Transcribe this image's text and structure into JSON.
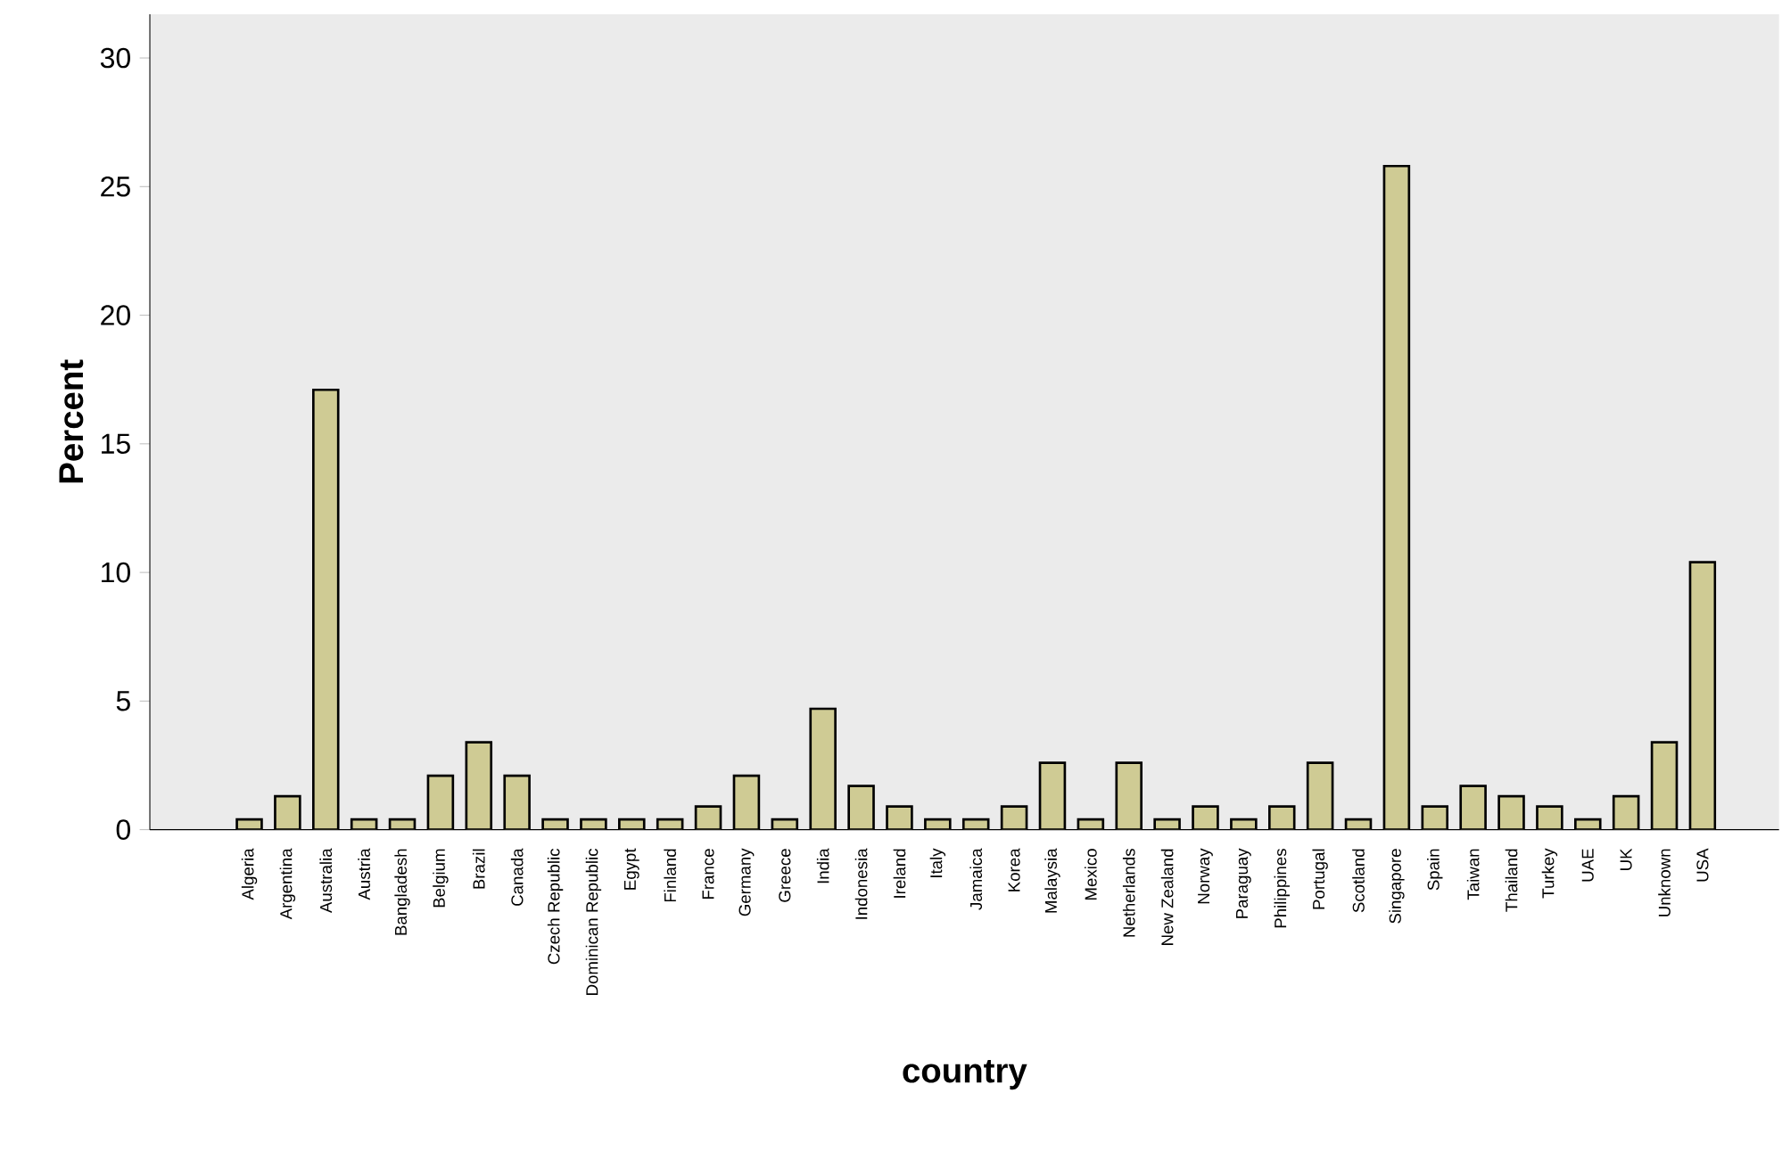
{
  "chart_data": {
    "type": "bar",
    "xlabel": "country",
    "ylabel": "Percent",
    "categories": [
      "Algeria",
      "Argentina",
      "Australia",
      "Austria",
      "Bangladesh",
      "Belgium",
      "Brazil",
      "Canada",
      "Czech Republic",
      "Dominican Republic",
      "Egypt",
      "Finland",
      "France",
      "Germany",
      "Greece",
      "India",
      "Indonesia",
      "Ireland",
      "Italy",
      "Jamaica",
      "Korea",
      "Malaysia",
      "Mexico",
      "Netherlands",
      "New Zealand",
      "Norway",
      "Paraguay",
      "Philippines",
      "Portugal",
      "Scotland",
      "Singapore",
      "Spain",
      "Taiwan",
      "Thailand",
      "Turkey",
      "UAE",
      "UK",
      "Unknown",
      "USA"
    ],
    "values": [
      0.4,
      1.3,
      17.1,
      0.4,
      0.4,
      2.1,
      3.4,
      2.1,
      0.4,
      0.4,
      0.4,
      0.4,
      0.9,
      2.1,
      0.4,
      4.7,
      1.7,
      0.9,
      0.4,
      0.4,
      0.9,
      2.6,
      0.4,
      2.6,
      0.4,
      0.9,
      0.4,
      0.9,
      2.6,
      0.4,
      25.8,
      0.9,
      1.7,
      1.3,
      0.9,
      0.4,
      1.3,
      3.4,
      10.4
    ],
    "color": "#cfcb94",
    "ylim": [
      0,
      31.7
    ],
    "yticks": [
      0,
      5,
      10,
      15,
      20,
      25,
      30
    ]
  }
}
